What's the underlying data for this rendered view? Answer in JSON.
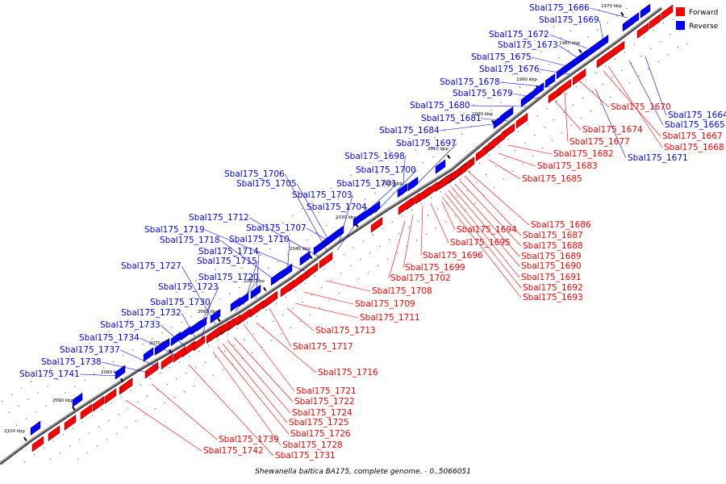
{
  "caption": "Shewanella baltica BA175, complete genome. - 0..5066051",
  "legend": {
    "forward_label": "Forward",
    "reverse_label": "Reverse",
    "forward_color": "#ff0000",
    "reverse_color": "#0000ff"
  },
  "colors": {
    "forward": "#ff0000",
    "reverse": "#0000ff",
    "backbone": "#555555"
  },
  "ticks": [
    "1970 kbp",
    "1980 kbp",
    "1990 kbp",
    "2000 kbp",
    "2010 kbp",
    "2020 kbp",
    "2030 kbp",
    "2040 kbp",
    "2050 kbp",
    "2060 kbp",
    "2070 kbp",
    "2080 kbp",
    "2090 kbp",
    "2100 kbp"
  ],
  "reverse_genes": [
    "Sbal175_1666",
    "Sbal175_1669",
    "Sbal175_1672",
    "Sbal175_1673",
    "Sbal175_1675",
    "Sbal175_1676",
    "Sbal175_1678",
    "Sbal175_1679",
    "Sbal175_1680",
    "Sbal175_1681",
    "Sbal175_1684",
    "Sbal175_1697",
    "Sbal175_1698",
    "Sbal175_1700",
    "Sbal175_1706",
    "Sbal175_1701",
    "Sbal175_1705",
    "Sbal175_1703",
    "Sbal175_1704",
    "Sbal175_1712",
    "Sbal175_1707",
    "Sbal175_1719",
    "Sbal175_1710",
    "Sbal175_1718",
    "Sbal175_1714",
    "Sbal175_1715",
    "Sbal175_1727",
    "Sbal175_1720",
    "Sbal175_1723",
    "Sbal175_1730",
    "Sbal175_1732",
    "Sbal175_1733",
    "Sbal175_1734",
    "Sbal175_1737",
    "Sbal175_1738",
    "Sbal175_1741",
    "Sbal175_1664",
    "Sbal175_1665",
    "Sbal175_1671"
  ],
  "forward_genes": [
    "Sbal175_1670",
    "Sbal175_1667",
    "Sbal175_1668",
    "Sbal175_1674",
    "Sbal175_1677",
    "Sbal175_1682",
    "Sbal175_1683",
    "Sbal175_1685",
    "Sbal175_1686",
    "Sbal175_1687",
    "Sbal175_1688",
    "Sbal175_1689",
    "Sbal175_1690",
    "Sbal175_1691",
    "Sbal175_1692",
    "Sbal175_1693",
    "Sbal175_1694",
    "Sbal175_1695",
    "Sbal175_1696",
    "Sbal175_1699",
    "Sbal175_1702",
    "Sbal175_1708",
    "Sbal175_1709",
    "Sbal175_1711",
    "Sbal175_1713",
    "Sbal175_1717",
    "Sbal175_1716",
    "Sbal175_1721",
    "Sbal175_1722",
    "Sbal175_1724",
    "Sbal175_1725",
    "Sbal175_1726",
    "Sbal175_1728",
    "Sbal175_1731",
    "Sbal175_1739",
    "Sbal175_1742"
  ]
}
